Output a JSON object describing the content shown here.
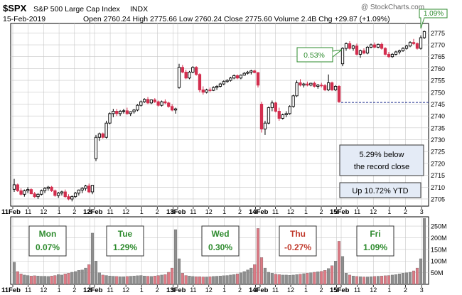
{
  "header": {
    "symbol": "$SPX",
    "name": "S&P 500 Large Cap Index",
    "exchange": "INDX",
    "date": "15-Feb-2019",
    "open_label": "Open",
    "open": "2760.24",
    "high_label": "High",
    "high": "2775.66",
    "low_label": "Low",
    "low": "2760.24",
    "close_label": "Close",
    "close": "2775.60",
    "volume_label": "Volume",
    "volume": "2.4B",
    "chg_label": "Chg",
    "chg": "+29.87 (+1.09%)",
    "watermark": "@ StockCharts.com"
  },
  "colors": {
    "up": "#000000",
    "down": "#d32f4f",
    "grid": "#c8c8c8",
    "green_text": "#2e8b2e",
    "red_text": "#c0392b",
    "note_bg": "#e4ebf6",
    "flag_border": "#2e8b2e",
    "ref_line": "#1f2f8f",
    "vol_up": "#8e8e8e",
    "vol_down": "#dd7a85"
  },
  "annotations": {
    "pct_flag_last": "1.09%",
    "pct_flag_mid": "0.53%",
    "record_note_line1": "5.29% below",
    "record_note_line2": "the record close",
    "ytd_note": "Up 10.72% YTD"
  },
  "days": [
    {
      "name": "Mon",
      "pct": "0.07%",
      "color": "#2e8b2e"
    },
    {
      "name": "Tue",
      "pct": "1.29%",
      "color": "#2e8b2e"
    },
    {
      "name": "Wed",
      "pct": "0.30%",
      "color": "#2e8b2e"
    },
    {
      "name": "Thu",
      "pct": "-0.27%",
      "color": "#c0392b"
    },
    {
      "name": "Fri",
      "pct": "1.09%",
      "color": "#2e8b2e"
    }
  ],
  "x_axis": {
    "labels": [
      "11Feb",
      "11",
      "12",
      "1",
      "2",
      "3",
      "12Feb",
      "11",
      "12",
      "1",
      "2",
      "3",
      "13Feb",
      "11",
      "12",
      "1",
      "2",
      "3",
      "14Feb",
      "11",
      "12",
      "1",
      "2",
      "3",
      "15Feb",
      "11",
      "12",
      "1",
      "2",
      "3"
    ]
  },
  "chart_data": {
    "type": "candlestick",
    "price_axis": {
      "ylim": [
        2702,
        2779
      ],
      "ticks": [
        2705,
        2710,
        2715,
        2720,
        2725,
        2730,
        2735,
        2740,
        2745,
        2750,
        2755,
        2760,
        2765,
        2770,
        2775
      ]
    },
    "volume_axis": {
      "ylim": [
        0,
        290
      ],
      "ticks": [
        50,
        100,
        150,
        200,
        250
      ],
      "tick_labels": [
        "50M",
        "100M",
        "150M",
        "200M",
        "250M"
      ]
    },
    "reference_line": 2745.7,
    "candles": [
      [
        2709.1,
        2713.5,
        2708.0,
        2711.0
      ],
      [
        2711.0,
        2711.5,
        2708.0,
        2708.5
      ],
      [
        2708.5,
        2709.5,
        2706.5,
        2707.0
      ],
      [
        2707.0,
        2709.0,
        2706.0,
        2708.5
      ],
      [
        2708.5,
        2710.0,
        2707.5,
        2709.0
      ],
      [
        2709.0,
        2709.5,
        2707.0,
        2707.2
      ],
      [
        2707.2,
        2708.0,
        2705.5,
        2706.0
      ],
      [
        2706.0,
        2707.5,
        2705.0,
        2707.0
      ],
      [
        2707.0,
        2709.0,
        2706.5,
        2708.5
      ],
      [
        2708.5,
        2710.0,
        2707.5,
        2709.5
      ],
      [
        2709.5,
        2710.5,
        2708.5,
        2710.0
      ],
      [
        2710.0,
        2710.5,
        2708.0,
        2708.5
      ],
      [
        2708.5,
        2709.0,
        2706.0,
        2706.5
      ],
      [
        2706.5,
        2708.0,
        2705.5,
        2707.5
      ],
      [
        2707.5,
        2708.5,
        2706.5,
        2708.0
      ],
      [
        2708.0,
        2709.0,
        2705.5,
        2706.0
      ],
      [
        2706.0,
        2707.0,
        2704.5,
        2705.0
      ],
      [
        2705.0,
        2706.5,
        2704.0,
        2706.0
      ],
      [
        2706.0,
        2708.0,
        2705.5,
        2707.5
      ],
      [
        2707.5,
        2709.0,
        2706.5,
        2708.8
      ],
      [
        2708.8,
        2710.0,
        2707.5,
        2709.5
      ],
      [
        2709.5,
        2711.0,
        2708.5,
        2710.5
      ],
      [
        2710.5,
        2711.5,
        2707.5,
        2708.0
      ],
      [
        2708.0,
        2711.0,
        2707.0,
        2710.8
      ],
      [
        2722.0,
        2732.0,
        2721.0,
        2731.0
      ],
      [
        2731.0,
        2733.0,
        2729.5,
        2732.5
      ],
      [
        2732.5,
        2733.0,
        2730.5,
        2731.0
      ],
      [
        2731.0,
        2738.0,
        2730.5,
        2737.0
      ],
      [
        2737.0,
        2741.5,
        2736.5,
        2741.0
      ],
      [
        2741.0,
        2743.0,
        2739.5,
        2742.0
      ],
      [
        2742.0,
        2743.0,
        2740.0,
        2741.0
      ],
      [
        2741.0,
        2742.5,
        2740.0,
        2742.0
      ],
      [
        2742.0,
        2743.0,
        2741.0,
        2742.2
      ],
      [
        2742.2,
        2743.5,
        2740.5,
        2741.0
      ],
      [
        2741.0,
        2742.0,
        2740.0,
        2741.8
      ],
      [
        2741.8,
        2743.0,
        2741.0,
        2742.5
      ],
      [
        2742.5,
        2745.0,
        2742.0,
        2744.5
      ],
      [
        2744.5,
        2746.5,
        2744.0,
        2746.0
      ],
      [
        2746.0,
        2747.5,
        2745.5,
        2747.0
      ],
      [
        2747.0,
        2748.0,
        2745.0,
        2745.5
      ],
      [
        2745.5,
        2747.0,
        2745.0,
        2746.8
      ],
      [
        2746.8,
        2747.5,
        2745.5,
        2746.0
      ],
      [
        2746.0,
        2746.5,
        2744.0,
        2744.5
      ],
      [
        2744.5,
        2746.5,
        2744.0,
        2746.0
      ],
      [
        2746.0,
        2747.0,
        2745.0,
        2745.5
      ],
      [
        2745.5,
        2746.0,
        2743.5,
        2744.0
      ],
      [
        2744.0,
        2745.0,
        2742.0,
        2742.5
      ],
      [
        2742.5,
        2743.5,
        2741.0,
        2743.0
      ],
      [
        2752.0,
        2762.0,
        2751.5,
        2760.5
      ],
      [
        2760.5,
        2761.5,
        2758.0,
        2758.5
      ],
      [
        2758.5,
        2759.5,
        2755.5,
        2756.0
      ],
      [
        2756.0,
        2759.0,
        2755.5,
        2758.5
      ],
      [
        2758.5,
        2761.0,
        2758.0,
        2760.5
      ],
      [
        2760.5,
        2761.0,
        2757.0,
        2757.5
      ],
      [
        2757.5,
        2758.0,
        2750.0,
        2751.0
      ],
      [
        2751.0,
        2752.5,
        2749.0,
        2750.0
      ],
      [
        2750.0,
        2751.5,
        2749.5,
        2751.0
      ],
      [
        2751.0,
        2752.0,
        2750.0,
        2750.8
      ],
      [
        2750.8,
        2752.5,
        2750.5,
        2752.0
      ],
      [
        2752.0,
        2753.0,
        2751.0,
        2752.5
      ],
      [
        2752.5,
        2754.0,
        2752.0,
        2753.5
      ],
      [
        2753.5,
        2755.0,
        2753.0,
        2754.5
      ],
      [
        2754.5,
        2755.5,
        2754.0,
        2755.0
      ],
      [
        2755.0,
        2756.5,
        2754.5,
        2756.0
      ],
      [
        2756.0,
        2757.5,
        2755.5,
        2757.0
      ],
      [
        2757.0,
        2757.5,
        2755.5,
        2756.0
      ],
      [
        2756.0,
        2757.5,
        2755.5,
        2757.2
      ],
      [
        2757.2,
        2758.5,
        2757.0,
        2758.0
      ],
      [
        2758.0,
        2759.0,
        2757.5,
        2758.5
      ],
      [
        2758.5,
        2759.5,
        2757.5,
        2759.0
      ],
      [
        2759.0,
        2759.5,
        2758.0,
        2758.3
      ],
      [
        2758.3,
        2758.5,
        2752.0,
        2753.0
      ],
      [
        2745.0,
        2746.0,
        2733.0,
        2734.5
      ],
      [
        2734.5,
        2738.0,
        2732.0,
        2737.0
      ],
      [
        2737.0,
        2744.0,
        2736.5,
        2743.5
      ],
      [
        2743.5,
        2746.5,
        2742.0,
        2745.5
      ],
      [
        2745.5,
        2746.0,
        2741.5,
        2742.0
      ],
      [
        2742.0,
        2743.5,
        2738.0,
        2739.0
      ],
      [
        2739.0,
        2741.0,
        2738.5,
        2740.5
      ],
      [
        2740.5,
        2742.0,
        2739.5,
        2741.0
      ],
      [
        2741.0,
        2744.5,
        2740.5,
        2744.0
      ],
      [
        2744.0,
        2749.0,
        2743.5,
        2748.5
      ],
      [
        2748.5,
        2755.0,
        2748.0,
        2754.0
      ],
      [
        2754.0,
        2755.5,
        2752.5,
        2753.0
      ],
      [
        2753.0,
        2754.0,
        2752.0,
        2753.5
      ],
      [
        2753.5,
        2754.5,
        2752.5,
        2753.0
      ],
      [
        2753.0,
        2754.0,
        2752.5,
        2753.8
      ],
      [
        2753.8,
        2754.5,
        2752.0,
        2752.5
      ],
      [
        2752.5,
        2753.5,
        2751.5,
        2753.0
      ],
      [
        2753.0,
        2754.0,
        2752.0,
        2752.8
      ],
      [
        2752.8,
        2753.5,
        2750.5,
        2751.0
      ],
      [
        2751.0,
        2757.5,
        2750.5,
        2754.0
      ],
      [
        2754.0,
        2754.5,
        2750.5,
        2751.0
      ],
      [
        2751.0,
        2753.0,
        2750.5,
        2752.5
      ],
      [
        2752.5,
        2753.0,
        2745.5,
        2746.0
      ],
      [
        2762.0,
        2769.0,
        2761.0,
        2768.5
      ],
      [
        2768.5,
        2771.0,
        2767.5,
        2770.5
      ],
      [
        2770.5,
        2771.5,
        2768.0,
        2768.5
      ],
      [
        2768.5,
        2770.0,
        2767.5,
        2769.5
      ],
      [
        2769.5,
        2770.5,
        2765.5,
        2766.0
      ],
      [
        2766.0,
        2768.0,
        2764.5,
        2767.5
      ],
      [
        2767.5,
        2768.5,
        2766.0,
        2766.5
      ],
      [
        2766.5,
        2769.5,
        2766.0,
        2769.0
      ],
      [
        2769.0,
        2770.5,
        2768.5,
        2770.0
      ],
      [
        2770.0,
        2771.0,
        2768.5,
        2769.0
      ],
      [
        2769.0,
        2770.5,
        2768.5,
        2770.2
      ],
      [
        2770.2,
        2771.0,
        2768.0,
        2768.5
      ],
      [
        2768.5,
        2769.0,
        2765.5,
        2766.0
      ],
      [
        2766.0,
        2767.0,
        2764.5,
        2765.0
      ],
      [
        2765.0,
        2766.5,
        2764.5,
        2766.0
      ],
      [
        2766.0,
        2767.5,
        2765.5,
        2767.0
      ],
      [
        2767.0,
        2768.0,
        2766.0,
        2767.5
      ],
      [
        2767.5,
        2769.0,
        2767.0,
        2768.5
      ],
      [
        2768.5,
        2770.0,
        2768.0,
        2769.5
      ],
      [
        2769.5,
        2771.5,
        2769.0,
        2771.0
      ],
      [
        2771.0,
        2772.5,
        2770.0,
        2770.5
      ],
      [
        2770.5,
        2771.0,
        2768.0,
        2768.5
      ],
      [
        2768.5,
        2774.0,
        2768.0,
        2773.0
      ],
      [
        2773.0,
        2776.0,
        2772.5,
        2775.6
      ]
    ],
    "volumes": [
      95,
      55,
      45,
      40,
      38,
      36,
      37,
      36,
      35,
      35,
      34,
      36,
      38,
      42,
      40,
      45,
      48,
      52,
      55,
      60,
      62,
      70,
      85,
      220,
      100,
      50,
      40,
      38,
      36,
      35,
      34,
      33,
      33,
      34,
      35,
      36,
      37,
      38,
      36,
      35,
      34,
      36,
      38,
      40,
      42,
      52,
      70,
      235,
      110,
      48,
      38,
      36,
      34,
      33,
      33,
      32,
      32,
      33,
      34,
      35,
      36,
      37,
      38,
      40,
      42,
      45,
      50,
      55,
      62,
      70,
      85,
      240,
      115,
      70,
      52,
      48,
      44,
      42,
      40,
      40,
      39,
      40,
      42,
      44,
      46,
      48,
      50,
      52,
      54,
      56,
      60,
      68,
      80,
      100,
      185,
      120,
      48,
      40,
      36,
      34,
      33,
      32,
      32,
      33,
      34,
      35,
      36,
      37,
      38,
      40,
      42,
      45,
      48,
      50,
      52,
      58,
      70,
      110,
      283
    ]
  }
}
